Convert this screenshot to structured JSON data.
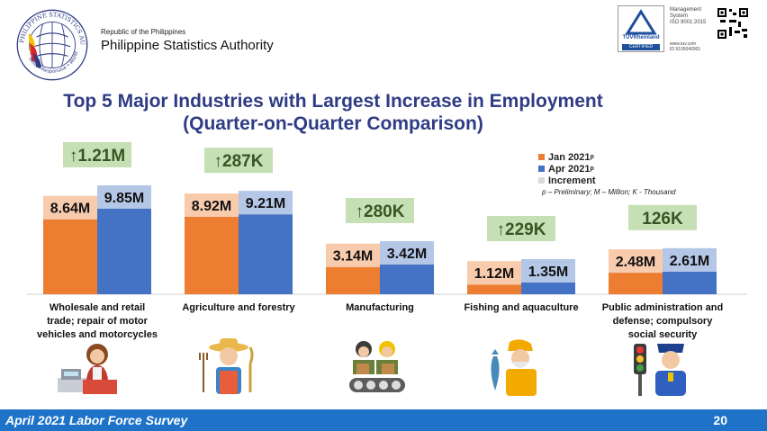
{
  "header": {
    "republic": "Republic of the Philippines",
    "agency": "Philippine Statistics Authority",
    "seal_ring_text": "PHILIPPINE STATISTICS AUTHORITY",
    "seal_motto": "Solid • Responsive • World-class",
    "cert_lines": [
      "Management",
      "System",
      "ISO 9001:2015"
    ],
    "cert_brand": "TÜVRheinland",
    "cert_badge": "CERTIFIED",
    "cert_lines2": [
      "www.tuv.com",
      "ID 9105040901"
    ]
  },
  "title_line1": "Top 5 Major Industries with Largest Increase in Employment",
  "title_line2": "(Quarter-on-Quarter Comparison)",
  "legend": {
    "jan": "Jan 2021",
    "jan_sup": "P",
    "apr": "Apr 2021",
    "apr_sup": "P",
    "inc": "Increment",
    "note": "p – Preliminary; M – Million; K - Thousand"
  },
  "colors": {
    "jan": "#ED7D31",
    "apr": "#4472C4",
    "jan_label_bg": "#F8CBAD",
    "apr_label_bg": "#B4C7E7",
    "inc_bg": "#C5E0B4",
    "inc_text": "#375623",
    "title": "#2F3C84",
    "footer": "#1e73c8"
  },
  "chart_data": {
    "type": "bar",
    "categories": [
      "Wholesale and retail trade; repair of motor vehicles and motorcycles",
      "Agriculture and forestry",
      "Manufacturing",
      "Fishing and aquaculture",
      "Public administration and defense; compulsory social security"
    ],
    "category_label_lines": [
      [
        "Wholesale and retail",
        "trade; repair of motor",
        "vehicles and motorcycles"
      ],
      [
        "Agriculture and forestry"
      ],
      [
        "Manufacturing"
      ],
      [
        "Fishing and aquaculture"
      ],
      [
        "Public administration and",
        "defense; compulsory",
        "social security"
      ]
    ],
    "series": [
      {
        "name": "Jan 2021",
        "values": [
          8.64,
          8.92,
          3.14,
          1.12,
          2.48
        ],
        "labels": [
          "8.64M",
          "8.92M",
          "3.14M",
          "1.12M",
          "2.48M"
        ]
      },
      {
        "name": "Apr 2021",
        "values": [
          9.85,
          9.21,
          3.42,
          1.35,
          2.61
        ],
        "labels": [
          "9.85M",
          "9.21M",
          "3.42M",
          "1.35M",
          "2.61M"
        ]
      }
    ],
    "increments": [
      "↑1.21M",
      "↑287K",
      "↑280K",
      "↑229K",
      "126K"
    ],
    "increment_values": [
      1.21,
      0.287,
      0.28,
      0.229,
      0.126
    ],
    "unit": "Million persons"
  },
  "footer": {
    "survey": "April 2021 Labor Force Survey",
    "page": "20"
  }
}
